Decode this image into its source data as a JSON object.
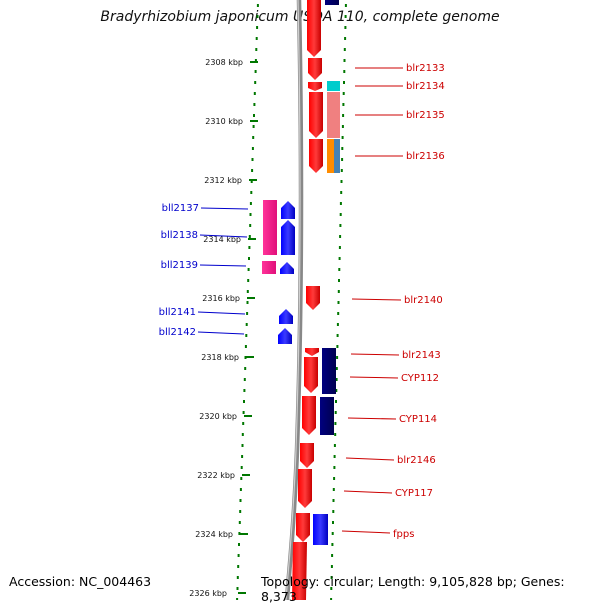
{
  "title": "Bradyrhizobium japonicum USDA 110, complete genome",
  "footer": {
    "accession": "Accession: NC_004463",
    "summary": "Topology: circular; Length: 9,105,828 bp; Genes: 8,373"
  },
  "kbp_labels": [
    "2308 kbp",
    "2310 kbp",
    "2312 kbp",
    "2314 kbp",
    "2316 kbp",
    "2318 kbp",
    "2320 kbp",
    "2322 kbp",
    "2324 kbp",
    "2326 kbp"
  ],
  "right_genes": [
    "blr2133",
    "blr2134",
    "blr2135",
    "blr2136",
    "blr2140",
    "blr2143",
    "CYP112",
    "CYP114",
    "blr2146",
    "CYP117",
    "fpps"
  ],
  "left_genes": [
    "bll2137",
    "bll2138",
    "bll2139",
    "bll2141",
    "bll2142"
  ],
  "colors": {
    "forward_strand": "#ff0000",
    "reverse_strand": "#0000ff",
    "right_label": "#cc0000",
    "left_label": "#0000cc",
    "backbone": "#888888",
    "tick_green": "#007700",
    "magenta": "#ff3399",
    "navy": "#000066",
    "teal": "#00cccc",
    "salmon": "#f08080",
    "orange": "#ff8c00",
    "steel": "#4682b4"
  }
}
